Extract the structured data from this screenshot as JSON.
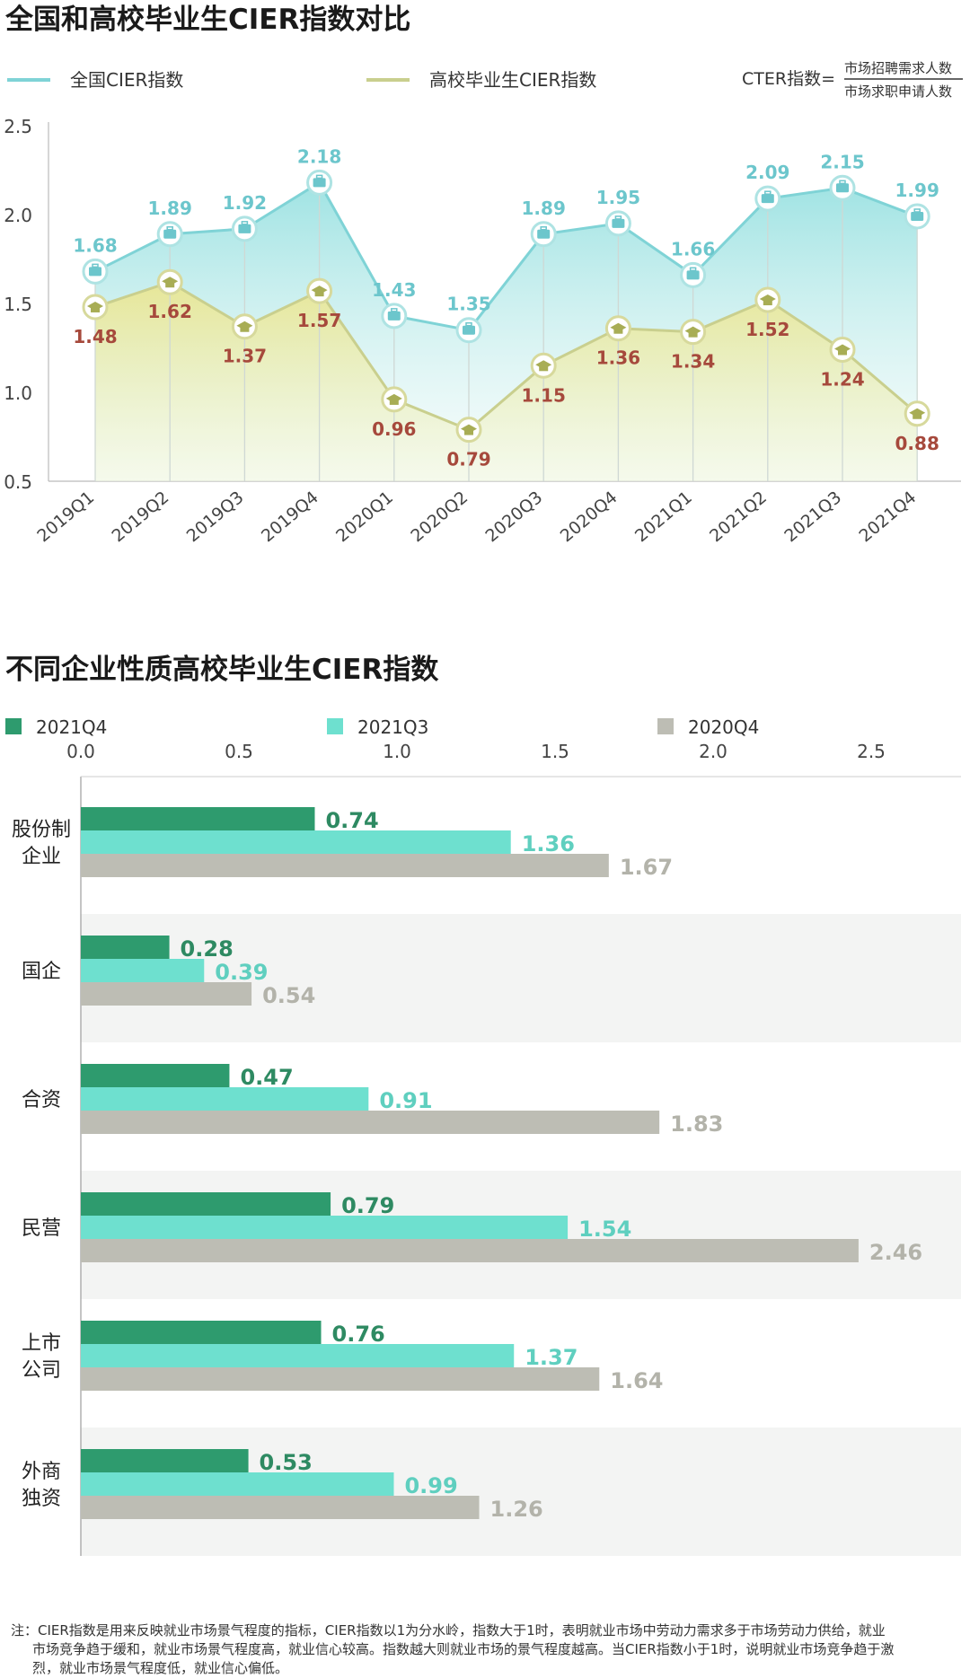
{
  "chart_data": [
    {
      "type": "line",
      "title": "全国和高校毕业生CIER指数对比",
      "formula": {
        "prefix": "CTER指数=",
        "numerator": "市场招聘需求人数",
        "denominator": "市场求职申请人数"
      },
      "categories": [
        "2019Q1",
        "2019Q2",
        "2019Q3",
        "2019Q4",
        "2020Q1",
        "2020Q2",
        "2020Q3",
        "2020Q4",
        "2021Q1",
        "2021Q2",
        "2021Q3",
        "2021Q4"
      ],
      "series": [
        {
          "name": "全国CIER指数",
          "color": "#7fd3d6",
          "label_color": "#6cc6cc",
          "values": [
            1.68,
            1.89,
            1.92,
            2.18,
            1.43,
            1.35,
            1.89,
            1.95,
            1.66,
            2.09,
            2.15,
            1.99
          ]
        },
        {
          "name": "高校毕业生CIER指数",
          "color": "#c9cf8e",
          "label_color": "#a6493c",
          "values": [
            1.48,
            1.62,
            1.37,
            1.57,
            0.96,
            0.79,
            1.15,
            1.36,
            1.34,
            1.52,
            1.24,
            0.88
          ]
        }
      ],
      "yticks": [
        "0.5",
        "1.0",
        "1.5",
        "2.0",
        "2.5"
      ],
      "ylim": [
        0.5,
        2.5
      ],
      "legend_position": "top"
    },
    {
      "type": "bar",
      "orientation": "horizontal",
      "title": "不同企业性质高校毕业生CIER指数",
      "categories": [
        [
          "股份制",
          "企业"
        ],
        [
          "国企"
        ],
        [
          "合资"
        ],
        [
          "民营"
        ],
        [
          "上市",
          "公司"
        ],
        [
          "外商",
          "独资"
        ]
      ],
      "series": [
        {
          "name": "2021Q4",
          "color": "#2e9b6e",
          "values": [
            0.74,
            0.28,
            0.47,
            0.79,
            0.76,
            0.53
          ]
        },
        {
          "name": "2021Q3",
          "color": "#6ee0cf",
          "values": [
            1.36,
            0.39,
            0.91,
            1.54,
            1.37,
            0.99
          ]
        },
        {
          "name": "2020Q4",
          "color": "#bdbdb4",
          "values": [
            1.67,
            0.54,
            1.83,
            2.46,
            1.64,
            1.26
          ]
        }
      ],
      "xticks": [
        "0.0",
        "0.5",
        "1.0",
        "1.5",
        "2.0",
        "2.5"
      ],
      "xlim": [
        0,
        2.75
      ],
      "legend_position": "top"
    }
  ],
  "note": {
    "lines": [
      "注：CIER指数是用来反映就业市场景气程度的指标，CIER指数以1为分水岭，指数大于1时，表明就业市场中劳动力需求多于市场劳动力供给，就业",
      "市场竞争趋于缓和，就业市场景气程度高，就业信心较高。指数越大则就业市场的景气程度越高。当CIER指数小于1时，说明就业市场竞争趋于激",
      "烈，就业市场景气程度低，就业信心偏低。"
    ]
  }
}
